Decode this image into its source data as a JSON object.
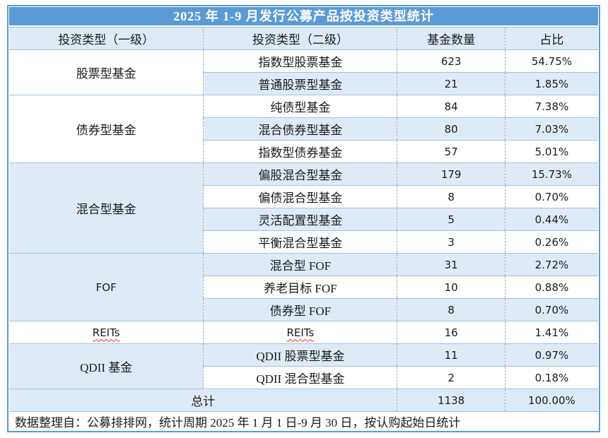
{
  "title": "2025 年 1-9 月发行公募产品按投资类型统计",
  "header": {
    "col1": "投资类型（一级）",
    "col2": "投资类型（二级）",
    "col3": "基金数量",
    "col4": "占比"
  },
  "groups": [
    {
      "category": "股票型基金",
      "rows": [
        {
          "type": "指数型股票基金",
          "count": "623",
          "share": "54.75%"
        },
        {
          "type": "普通股票型基金",
          "count": "21",
          "share": "1.85%"
        }
      ]
    },
    {
      "category": "债券型基金",
      "rows": [
        {
          "type": "纯债型基金",
          "count": "84",
          "share": "7.38%"
        },
        {
          "type": "混合债券型基金",
          "count": "80",
          "share": "7.03%"
        },
        {
          "type": "指数型债券基金",
          "count": "57",
          "share": "5.01%"
        }
      ]
    },
    {
      "category": "混合型基金",
      "rows": [
        {
          "type": "偏股混合型基金",
          "count": "179",
          "share": "15.73%"
        },
        {
          "type": "偏债混合型基金",
          "count": "8",
          "share": "0.70%"
        },
        {
          "type": "灵活配置型基金",
          "count": "5",
          "share": "0.44%"
        },
        {
          "type": "平衡混合型基金",
          "count": "3",
          "share": "0.26%"
        }
      ]
    },
    {
      "category": "FOF",
      "rows": [
        {
          "type": "混合型 FOF",
          "count": "31",
          "share": "2.72%"
        },
        {
          "type": "养老目标 FOF",
          "count": "10",
          "share": "0.88%"
        },
        {
          "type": "债券型 FOF",
          "count": "8",
          "share": "0.70%"
        }
      ]
    },
    {
      "category": "REITs",
      "rows": [
        {
          "type": "REITs",
          "count": "16",
          "share": "1.41%"
        }
      ]
    },
    {
      "category": "QDII 基金",
      "rows": [
        {
          "type": "QDII 股票型基金",
          "count": "11",
          "share": "0.97%"
        },
        {
          "type": "QDII 混合型基金",
          "count": "2",
          "share": "0.18%"
        }
      ]
    }
  ],
  "total": {
    "label": "总计",
    "count": "1138",
    "share": "100.00%"
  },
  "footer": "数据整理自：公募排排网，统计周期 2025 年 1 月 1 日-9 月 30 日，按认购起始日统计",
  "colors": {
    "title_bar": "#5B9BD5",
    "row_alt": "#DEEBF7",
    "grid_line": "#9DC3E6",
    "outer_border": "#5B9BD5",
    "dashed_line": "#ABABAB",
    "misspell_underline": "#FF2A2A"
  }
}
